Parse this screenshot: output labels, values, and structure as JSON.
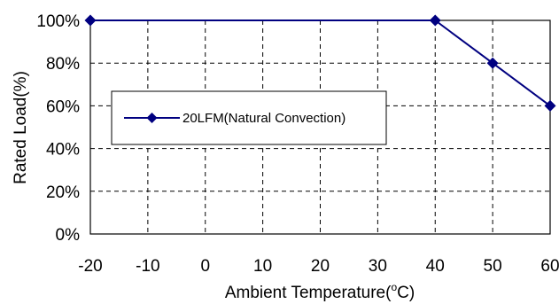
{
  "chart_data": {
    "type": "line",
    "title": "",
    "xlabel": "Ambient Temperature(",
    "xlabel_degree": "o",
    "xlabel_unit": "C)",
    "ylabel": "Rated Load(%)",
    "x_ticks": [
      -20,
      -10,
      0,
      10,
      20,
      30,
      40,
      50,
      60
    ],
    "y_ticks": [
      0,
      20,
      40,
      60,
      80,
      100
    ],
    "x_tick_labels": [
      "-20",
      "-10",
      "0",
      "10",
      "20",
      "30",
      "40",
      "50",
      "60"
    ],
    "y_tick_labels": [
      "0%",
      "20%",
      "40%",
      "60%",
      "80%",
      "100%"
    ],
    "xlim": [
      -20,
      60
    ],
    "ylim": [
      0,
      100
    ],
    "grid": true,
    "grid_style": "dashed",
    "legend_position": "center-left",
    "series": [
      {
        "name": "20LFM(Natural Convection)",
        "color": "#000080",
        "marker": "diamond",
        "x": [
          -20,
          40,
          50,
          60
        ],
        "y": [
          100,
          100,
          80,
          60
        ]
      }
    ]
  }
}
